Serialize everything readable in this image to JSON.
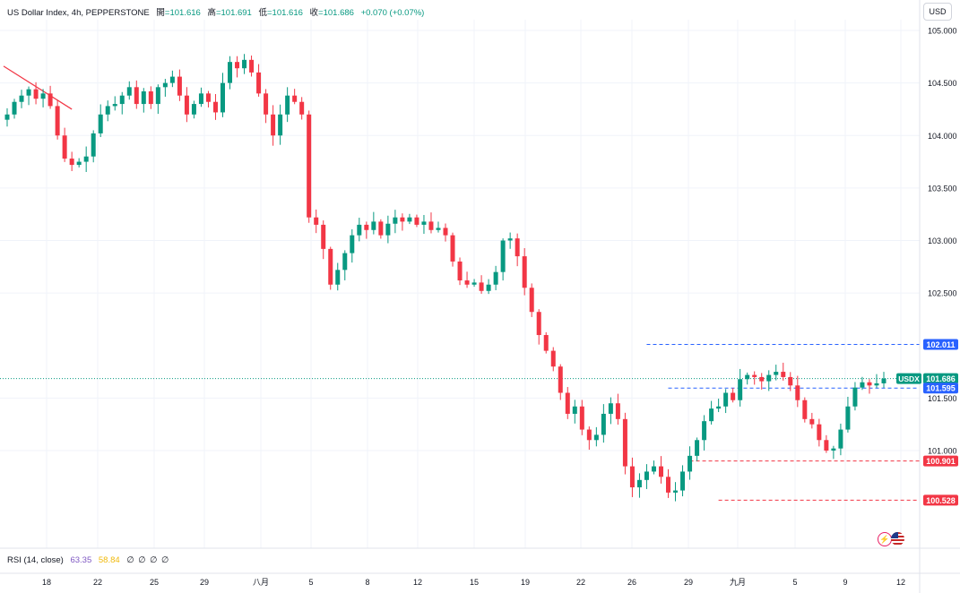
{
  "header": {
    "symbol": "US Dollar Index, 4h, PEPPERSTONE",
    "open_label": "開",
    "open": "=101.616",
    "high_label": "高",
    "high": "=101.691",
    "low_label": "低",
    "low": "=101.616",
    "close_label": "收",
    "close": "=101.686",
    "change": "+0.070 (+0.07%)"
  },
  "currency_button": "USD",
  "rsi_legend": {
    "name": "RSI (14, close)",
    "value1": "63.35",
    "value2": "58.84",
    "placeholders": "∅ ∅ ∅ ∅"
  },
  "colors": {
    "up": "#089981",
    "down": "#f23645",
    "blue_line": "#2962ff",
    "red_line": "#f23645",
    "trend_line": "#f23645",
    "grid": "#f0f3fa"
  },
  "icons": [
    "flash-icon",
    "us-flag-icon"
  ],
  "chart_data": {
    "type": "candlestick",
    "ylim": [
      100.5,
      105.0
    ],
    "y_ticks": [
      "105.000",
      "104.500",
      "104.000",
      "103.500",
      "103.000",
      "102.500",
      "101.500",
      "101.000"
    ],
    "y_tick_values": [
      105.0,
      104.5,
      104.0,
      103.5,
      103.0,
      102.5,
      101.5,
      101.0
    ],
    "x_ticks": [
      "18",
      "22",
      "25",
      "29",
      "八月",
      "5",
      "8",
      "12",
      "15",
      "19",
      "22",
      "26",
      "29",
      "九月",
      "5",
      "9",
      "12"
    ],
    "price_tags": [
      {
        "text": "102.011",
        "value": 102.011,
        "kind": "blue-level"
      },
      {
        "text": "101.686",
        "value": 101.686,
        "kind": "current",
        "label": "USDX"
      },
      {
        "text": "101.595",
        "value": 101.595,
        "kind": "blue-level"
      },
      {
        "text": "100.901",
        "value": 100.901,
        "kind": "red-level"
      },
      {
        "text": "100.528",
        "value": 100.528,
        "kind": "red-level"
      }
    ],
    "current_price": 101.686,
    "level_lines": [
      {
        "value": 102.011,
        "kind": "blue",
        "from_candle": 89
      },
      {
        "value": 101.595,
        "kind": "blue",
        "from_candle": 92
      },
      {
        "value": 100.901,
        "kind": "red",
        "from_candle": 95
      },
      {
        "value": 100.528,
        "kind": "red",
        "from_candle": 99
      }
    ],
    "trend_line": {
      "from": {
        "candle": 0,
        "value": 104.66
      },
      "to": {
        "candle": 9,
        "value": 104.25
      }
    },
    "closes": [
      104.2,
      104.32,
      104.38,
      104.44,
      104.35,
      104.4,
      104.28,
      104.0,
      103.78,
      103.72,
      103.75,
      103.8,
      104.02,
      104.2,
      104.28,
      104.3,
      104.38,
      104.46,
      104.3,
      104.42,
      104.3,
      104.46,
      104.5,
      104.56,
      104.38,
      104.2,
      104.3,
      104.4,
      104.32,
      104.22,
      104.5,
      104.7,
      104.64,
      104.72,
      104.6,
      104.4,
      104.2,
      104.0,
      104.2,
      104.38,
      104.32,
      104.2,
      103.22,
      103.15,
      102.92,
      102.58,
      102.72,
      102.88,
      103.05,
      103.15,
      103.1,
      103.18,
      103.05,
      103.16,
      103.22,
      103.18,
      103.22,
      103.15,
      103.18,
      103.1,
      103.12,
      103.05,
      102.8,
      102.62,
      102.58,
      102.6,
      102.52,
      102.58,
      102.7,
      103.0,
      103.02,
      102.85,
      102.55,
      102.32,
      102.1,
      101.95,
      101.8,
      101.55,
      101.35,
      101.42,
      101.2,
      101.1,
      101.15,
      101.35,
      101.45,
      101.3,
      100.85,
      100.65,
      100.72,
      100.8,
      100.85,
      100.75,
      100.6,
      100.62,
      100.8,
      100.95,
      101.1,
      101.28,
      101.4,
      101.42,
      101.55,
      101.48,
      101.68,
      101.72,
      101.7,
      101.66,
      101.72,
      101.75,
      101.7,
      101.62,
      101.48,
      101.3,
      101.25,
      101.1,
      101.0,
      101.02,
      101.2,
      101.42,
      101.6,
      101.65,
      101.62,
      101.64,
      101.686
    ]
  }
}
